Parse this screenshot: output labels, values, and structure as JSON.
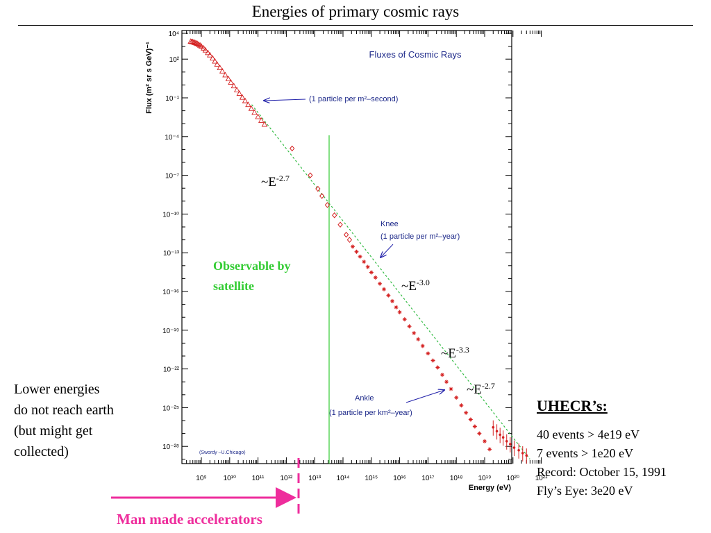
{
  "slide": {
    "title": "Energies of primary cosmic rays",
    "side_text": [
      "Lower energies",
      "do not reach earth",
      "(but might get",
      "collected)"
    ],
    "uhecr": {
      "heading": "UHECR’s:",
      "items": [
        "40 events > 4e19 eV",
        "7   events > 1e20 eV",
        "Record: October 15, 1991",
        "Fly’s Eye: 3e20 eV"
      ]
    },
    "accelerator_label": "Man made accelerators"
  },
  "chart_data": {
    "type": "scatter",
    "title": "Fluxes of Cosmic Rays",
    "xlabel": "Energy (eV)",
    "ylabel": "Flux (m² sr s GeV)⁻¹",
    "x_scale": "log",
    "y_scale": "log",
    "xlim": [
      300000000.0,
      1e+21
    ],
    "ylim": [
      1e-29,
      10000.0
    ],
    "grid": false,
    "x_tick_labels": [
      "10⁹",
      "10¹⁰",
      "10¹¹",
      "10¹²",
      "10¹³",
      "10¹⁴",
      "10¹⁵",
      "10¹⁶",
      "10¹⁷",
      "10¹⁸",
      "10¹⁹",
      "10²⁰",
      "10²¹"
    ],
    "y_tick_labels": [
      "10⁴",
      "10²",
      "10⁻¹",
      "10⁻⁴",
      "10⁻⁷",
      "10⁻¹⁰",
      "10⁻¹³",
      "10⁻¹⁶",
      "10⁻¹⁹",
      "10⁻²²",
      "10⁻²⁵",
      "10⁻²⁸"
    ],
    "series": [
      {
        "marker": "triangle",
        "color": "#d42020",
        "points": [
          [
            420000000.0,
            2400
          ],
          [
            460000000.0,
            2300
          ],
          [
            500000000.0,
            2200
          ],
          [
            550000000.0,
            2050
          ],
          [
            600000000.0,
            1900
          ],
          [
            660000000.0,
            1750
          ],
          [
            720000000.0,
            1600
          ],
          [
            800000000.0,
            1400
          ],
          [
            900000000.0,
            1200
          ],
          [
            1000000000.0,
            1000
          ],
          [
            1200000000.0,
            720
          ],
          [
            1400000000.0,
            500
          ],
          [
            1700000000.0,
            320
          ],
          [
            2000000000.0,
            210
          ],
          [
            2500000000.0,
            120
          ],
          [
            3000000000.0,
            70
          ],
          [
            3600000000.0,
            40
          ],
          [
            4500000000.0,
            22
          ],
          [
            5500000000.0,
            12
          ],
          [
            7000000000.0,
            6
          ],
          [
            9000000000.0,
            3
          ],
          [
            11000000000.0,
            1.6
          ],
          [
            14000000000.0,
            0.85
          ],
          [
            18000000000.0,
            0.42
          ],
          [
            22000000000.0,
            0.22
          ],
          [
            28000000000.0,
            0.11
          ],
          [
            35000000000.0,
            0.06
          ],
          [
            45000000000.0,
            0.03
          ],
          [
            58000000000.0,
            0.015
          ],
          [
            75000000000.0,
            0.0075
          ],
          [
            100000000000.0,
            0.0035
          ],
          [
            130000000000.0,
            0.0018
          ],
          [
            170000000000.0,
            0.0009
          ]
        ]
      },
      {
        "marker": "diamond",
        "color": "#d42020",
        "points": [
          [
            1600000000000.0,
            1.2e-05
          ],
          [
            7000000000000.0,
            1e-07
          ],
          [
            13000000000000.0,
            9e-09
          ],
          [
            18000000000000.0,
            2.5e-09
          ],
          [
            28000000000000.0,
            5e-10
          ],
          [
            50000000000000.0,
            8e-11
          ],
          [
            80000000000000.0,
            1.5e-11
          ],
          [
            130000000000000.0,
            2.5e-12
          ],
          [
            170000000000000.0,
            1e-12
          ]
        ]
      },
      {
        "marker": "star",
        "color": "#d42020",
        "points": [
          [
            220000000000000.0,
            3e-13
          ],
          [
            300000000000000.0,
            1.2e-13
          ],
          [
            400000000000000.0,
            5e-14
          ],
          [
            550000000000000.0,
            2e-14
          ],
          [
            750000000000000.0,
            8e-15
          ],
          [
            1000000000000000.0,
            3e-15
          ],
          [
            1400000000000000.0,
            1.2e-15
          ],
          [
            2000000000000000.0,
            4e-16
          ],
          [
            2800000000000000.0,
            1.5e-16
          ],
          [
            4000000000000000.0,
            5e-17
          ],
          [
            5500000000000000.0,
            1.8e-17
          ],
          [
            7500000000000000.0,
            6e-18
          ],
          [
            1e+16,
            2.5e-18
          ],
          [
            1.5e+16,
            7e-19
          ],
          [
            2.2e+16,
            2e-19
          ],
          [
            3.2e+16,
            6e-20
          ],
          [
            4.5e+16,
            2e-20
          ],
          [
            6.5e+16,
            6e-21
          ],
          [
            1e+17,
            1.6e-21
          ],
          [
            1.5e+17,
            4.5e-22
          ],
          [
            2.2e+17,
            1.3e-22
          ],
          [
            3.2e+17,
            3.5e-23
          ],
          [
            4.5e+17,
            1e-23
          ],
          [
            6.5e+17,
            2.8e-24
          ],
          [
            1e+18,
            6e-25
          ],
          [
            1.5e+18,
            1.5e-25
          ],
          [
            2.2e+18,
            4e-26
          ],
          [
            3.2e+18,
            1.2e-26
          ],
          [
            4.5e+18,
            3.5e-27
          ],
          [
            6.5e+18,
            1e-27
          ],
          [
            1e+19,
            2.5e-28
          ],
          [
            1.5e+19,
            6e-29
          ]
        ]
      },
      {
        "marker": "point-with-error-bar",
        "color": "#d42020",
        "points": [
          [
            2e+19,
            3e-27
          ],
          [
            2.7e+19,
            1.5e-27
          ],
          [
            3.5e+19,
            8e-28
          ],
          [
            4.5e+19,
            5e-28
          ],
          [
            6e+19,
            2.5e-28
          ],
          [
            8e+19,
            1.5e-28
          ],
          [
            1.1e+20,
            8e-29
          ],
          [
            1.6e+20,
            5e-29
          ],
          [
            2.2e+20,
            3e-29
          ],
          [
            3e+20,
            2e-29
          ]
        ]
      }
    ],
    "fit_line": {
      "color": "#33bb44",
      "style": "dotted",
      "points": [
        [
          60000000000.0,
          0.03
        ],
        [
          4e+20,
          1e-29
        ]
      ]
    },
    "annotations": [
      {
        "text": "(1 particle per m²–second)",
        "arrow_to": [
          160000000000.0,
          0.02
        ]
      },
      {
        "text": "Knee",
        "arrow_to": null
      },
      {
        "text": "(1 particle per m²–year)",
        "arrow_to": [
          4000000000000000.0,
          3e-16
        ]
      },
      {
        "text": "Ankle",
        "arrow_to": null
      },
      {
        "text": "(1 particle per km²–year)",
        "arrow_to": [
          3e+18,
          2e-24
        ]
      },
      {
        "text": "(Swordy –U.Chicago)",
        "arrow_to": null
      }
    ],
    "overlays": {
      "satellite_limit_x": 100000000000000.0,
      "satellite_label": [
        "Observable by",
        "satellite"
      ],
      "satellite_color": "#33cc33",
      "accelerator_limit_x": 10000000000000.0,
      "accelerator_color": "#ee2d9c"
    },
    "slope_labels": [
      {
        "text": "~E",
        "exponent": "-2.7"
      },
      {
        "text": "~E",
        "exponent": "-3.0"
      },
      {
        "text": "~E",
        "exponent": "-3.3"
      },
      {
        "text": "~E",
        "exponent": "-2.7"
      }
    ]
  }
}
